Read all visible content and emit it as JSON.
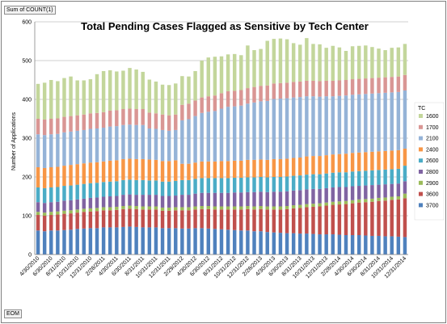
{
  "pivot": {
    "value_field": "Sum of COUNT(1)",
    "axis_field": "EOM"
  },
  "colors": {
    "1600": "#c3d69b",
    "1700": "#d99694",
    "2100": "#95b3d7",
    "2400": "#f79646",
    "2600": "#4bacc6",
    "2800": "#8064a2",
    "2900": "#9bbb59",
    "3600": "#c0504d",
    "3700": "#4f81bd"
  },
  "chart_data": {
    "type": "bar",
    "stacked": true,
    "title": "Total Pending Cases Flagged as Sensitive by Tech Center",
    "ylabel": "Number of Applications",
    "xlabel": "",
    "ylim": [
      0,
      600
    ],
    "yticks": [
      0,
      100,
      200,
      300,
      400,
      500,
      600
    ],
    "grid": true,
    "legend_title": "TC",
    "legend_position": "right",
    "x_tick_labels": [
      "4/30/2010",
      "6/30/2010",
      "8/31/2010",
      "10/31/2010",
      "12/31/2010",
      "2/28/2011",
      "4/30/2011",
      "6/30/2011",
      "8/31/2011",
      "10/31/2011",
      "12/31/2011",
      "2/29/2012",
      "4/30/2012",
      "6/30/2012",
      "8/31/2012",
      "10/31/2012",
      "12/31/2012",
      "2/28/2013",
      "4/30/2013",
      "6/30/2013",
      "8/31/2013",
      "10/31/2013",
      "12/31/2013",
      "2/28/2014",
      "4/30/2014",
      "6/30/2014",
      "8/31/2014",
      "10/31/2014",
      "12/31/2014"
    ],
    "categories": [
      "4/30/2010",
      "5/31/2010",
      "6/30/2010",
      "7/31/2010",
      "8/31/2010",
      "9/30/2010",
      "10/31/2010",
      "11/30/2010",
      "12/31/2010",
      "1/31/2011",
      "2/28/2011",
      "3/31/2011",
      "4/30/2011",
      "5/31/2011",
      "6/30/2011",
      "7/31/2011",
      "8/31/2011",
      "9/30/2011",
      "10/31/2011",
      "11/30/2011",
      "12/31/2011",
      "1/31/2012",
      "2/29/2012",
      "3/31/2012",
      "4/30/2012",
      "5/31/2012",
      "6/30/2012",
      "7/31/2012",
      "8/31/2012",
      "9/30/2012",
      "10/31/2012",
      "11/30/2012",
      "12/31/2012",
      "1/31/2013",
      "2/28/2013",
      "3/31/2013",
      "4/30/2013",
      "5/31/2013",
      "6/30/2013",
      "7/31/2013",
      "8/31/2013",
      "9/30/2013",
      "10/31/2013",
      "11/30/2013",
      "12/31/2013",
      "1/31/2014",
      "2/28/2014",
      "3/31/2014",
      "4/30/2014",
      "5/31/2014",
      "6/30/2014",
      "7/31/2014",
      "8/31/2014",
      "9/30/2014",
      "10/31/2014",
      "11/30/2014",
      "12/31/2014"
    ],
    "series": [
      {
        "name": "3700",
        "values": [
          62,
          60,
          62,
          62,
          63,
          64,
          66,
          67,
          68,
          68,
          70,
          70,
          70,
          71,
          72,
          71,
          70,
          70,
          70,
          68,
          68,
          68,
          67,
          67,
          68,
          68,
          67,
          66,
          65,
          64,
          63,
          62,
          62,
          60,
          60,
          58,
          57,
          56,
          55,
          55,
          54,
          54,
          53,
          52,
          52,
          52,
          51,
          50,
          50,
          50,
          49,
          48,
          48,
          47,
          47,
          46,
          45
        ]
      },
      {
        "name": "3600",
        "values": [
          40,
          40,
          40,
          41,
          42,
          42,
          42,
          43,
          43,
          44,
          44,
          44,
          45,
          46,
          46,
          46,
          46,
          46,
          46,
          45,
          45,
          46,
          47,
          47,
          48,
          49,
          50,
          50,
          51,
          52,
          53,
          54,
          55,
          56,
          57,
          58,
          59,
          60,
          62,
          64,
          66,
          68,
          70,
          72,
          74,
          76,
          78,
          80,
          82,
          84,
          86,
          88,
          90,
          92,
          94,
          96,
          100
        ]
      },
      {
        "name": "2900",
        "values": [
          8,
          8,
          8,
          8,
          8,
          8,
          8,
          8,
          8,
          8,
          8,
          8,
          8,
          8,
          8,
          8,
          8,
          8,
          8,
          8,
          8,
          8,
          8,
          8,
          8,
          8,
          8,
          8,
          8,
          8,
          8,
          8,
          8,
          8,
          8,
          8,
          8,
          8,
          8,
          8,
          8,
          8,
          8,
          8,
          8,
          8,
          8,
          8,
          8,
          8,
          8,
          8,
          8,
          8,
          8,
          8,
          12
        ]
      },
      {
        "name": "2800",
        "values": [
          25,
          25,
          25,
          25,
          26,
          26,
          26,
          26,
          27,
          27,
          27,
          28,
          28,
          29,
          29,
          29,
          30,
          30,
          30,
          30,
          30,
          30,
          32,
          32,
          33,
          34,
          34,
          35,
          35,
          35,
          36,
          36,
          36,
          37,
          37,
          37,
          38,
          38,
          38,
          38,
          38,
          38,
          38,
          37,
          37,
          37,
          37,
          36,
          36,
          35,
          35,
          35,
          34,
          34,
          33,
          33,
          32
        ]
      },
      {
        "name": "2600",
        "values": [
          38,
          38,
          38,
          38,
          38,
          38,
          38,
          38,
          38,
          38,
          38,
          38,
          38,
          38,
          38,
          38,
          38,
          37,
          37,
          37,
          37,
          38,
          38,
          38,
          38,
          38,
          38,
          38,
          38,
          38,
          38,
          38,
          38,
          38,
          38,
          38,
          38,
          38,
          38,
          38,
          38,
          38,
          38,
          38,
          38,
          38,
          38,
          38,
          38,
          38,
          38,
          38,
          38,
          38,
          38,
          38,
          40
        ]
      },
      {
        "name": "2400",
        "values": [
          52,
          52,
          52,
          52,
          52,
          53,
          53,
          53,
          53,
          53,
          53,
          54,
          54,
          54,
          54,
          54,
          54,
          54,
          53,
          53,
          53,
          53,
          42,
          42,
          42,
          43,
          43,
          43,
          44,
          44,
          44,
          44,
          45,
          45,
          45,
          45,
          46,
          46,
          46,
          46,
          46,
          47,
          47,
          47,
          47,
          47,
          47,
          48,
          48,
          48,
          48,
          48,
          48,
          48,
          48,
          48,
          44
        ]
      },
      {
        "name": "2100",
        "values": [
          85,
          85,
          85,
          85,
          86,
          86,
          86,
          86,
          87,
          87,
          87,
          88,
          88,
          88,
          88,
          88,
          88,
          80,
          80,
          80,
          78,
          78,
          112,
          115,
          120,
          125,
          128,
          130,
          135,
          140,
          140,
          142,
          145,
          148,
          150,
          152,
          155,
          156,
          156,
          156,
          156,
          155,
          154,
          153,
          152,
          150,
          150,
          150,
          150,
          150,
          150,
          150,
          150,
          150,
          150,
          150,
          150
        ]
      },
      {
        "name": "1700",
        "values": [
          40,
          40,
          40,
          40,
          40,
          40,
          40,
          40,
          40,
          40,
          40,
          41,
          41,
          41,
          41,
          41,
          41,
          41,
          40,
          40,
          40,
          40,
          40,
          40,
          40,
          40,
          40,
          40,
          40,
          40,
          40,
          40,
          40,
          40,
          40,
          40,
          40,
          40,
          40,
          40,
          40,
          40,
          40,
          40,
          40,
          40,
          40,
          40,
          40,
          40,
          40,
          40,
          40,
          40,
          40,
          40,
          40
        ]
      },
      {
        "name": "1600",
        "values": [
          90,
          95,
          100,
          96,
          100,
          102,
          90,
          88,
          88,
          100,
          106,
          104,
          100,
          99,
          105,
          102,
          96,
          85,
          82,
          77,
          78,
          80,
          74,
          70,
          76,
          95,
          100,
          100,
          95,
          95,
          95,
          90,
          110,
          95,
          95,
          115,
          115,
          115,
          112,
          100,
          95,
          110,
          95,
          95,
          85,
          90,
          85,
          75,
          85,
          85,
          85,
          80,
          75,
          70,
          75,
          75,
          80
        ]
      }
    ]
  }
}
